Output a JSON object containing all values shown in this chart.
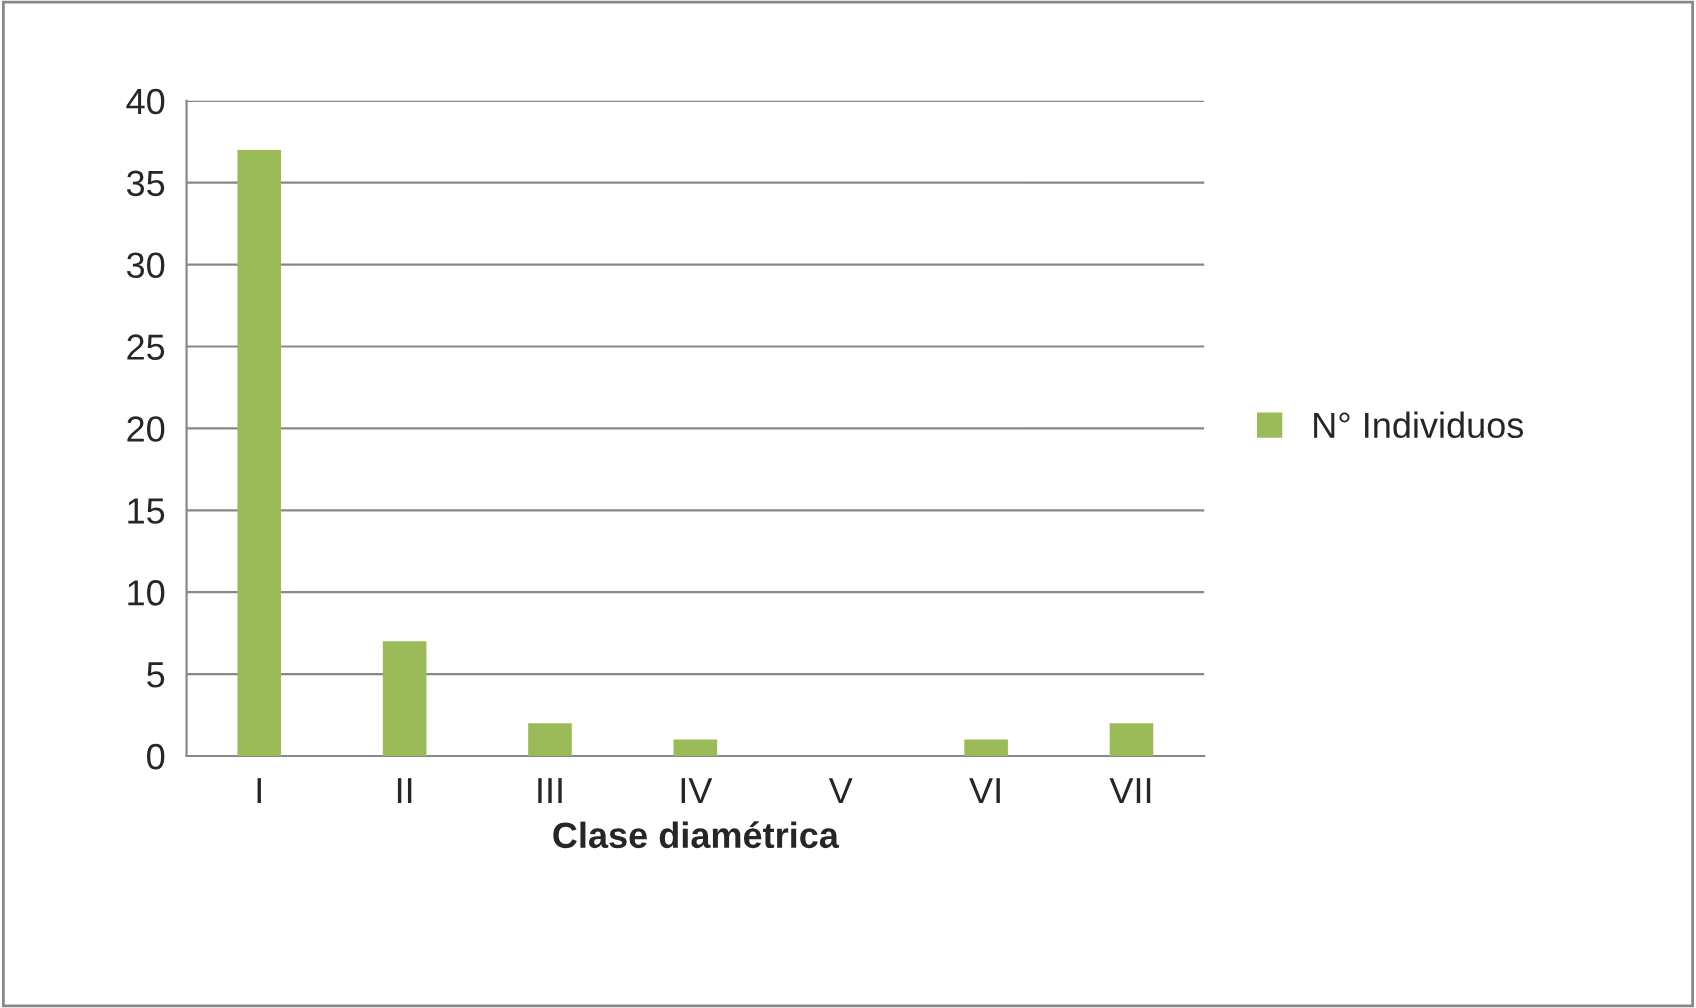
{
  "chart_data": {
    "type": "bar",
    "xlabel": "Clase diamétrica",
    "categories": [
      "I",
      "II",
      "III",
      "IV",
      "V",
      "VI",
      "VII"
    ],
    "series": [
      {
        "name": "N° Individuos",
        "color": "#9bbb59",
        "values": [
          37,
          7,
          2,
          1,
          0,
          1,
          2
        ]
      }
    ],
    "ylim": [
      0,
      40
    ],
    "yticks": [
      0,
      5,
      10,
      15,
      20,
      25,
      30,
      35,
      40
    ],
    "grid": "y",
    "legend": "right"
  }
}
